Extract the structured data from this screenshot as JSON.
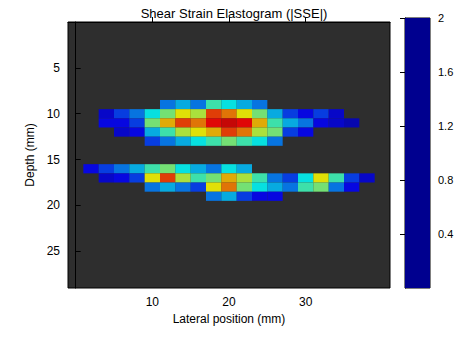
{
  "chart_data": {
    "type": "heatmap",
    "title": "Shear Strain Elastogram (|SSE|)",
    "x_label": "Lateral position (mm)",
    "y_label": "Depth (mm)",
    "xlim": [
      -1,
      41
    ],
    "xticks": [
      10,
      20,
      30
    ],
    "ylim": [
      0,
      29
    ],
    "yticks": [
      5,
      10,
      15,
      20,
      25
    ],
    "cells": [
      [
        4,
        10,
        0.3
      ],
      [
        4,
        11,
        0.4
      ],
      [
        6,
        10,
        0.5
      ],
      [
        6,
        11,
        0.4
      ],
      [
        6,
        12,
        0.3
      ],
      [
        8,
        10,
        0.6
      ],
      [
        8,
        11,
        0.5
      ],
      [
        8,
        12,
        0.4
      ],
      [
        10,
        10,
        0.8
      ],
      [
        10,
        11,
        1.0
      ],
      [
        10,
        12,
        0.7
      ],
      [
        10,
        13,
        0.5
      ],
      [
        12,
        9,
        0.6
      ],
      [
        12,
        10,
        1.0
      ],
      [
        12,
        11,
        1.3
      ],
      [
        12,
        12,
        0.9
      ],
      [
        12,
        13,
        0.6
      ],
      [
        14,
        9,
        0.7
      ],
      [
        14,
        10,
        1.2
      ],
      [
        14,
        11,
        1.5
      ],
      [
        14,
        12,
        1.1
      ],
      [
        14,
        13,
        0.7
      ],
      [
        16,
        9,
        0.6
      ],
      [
        16,
        10,
        1.1
      ],
      [
        16,
        11,
        1.4
      ],
      [
        16,
        12,
        1.2
      ],
      [
        16,
        13,
        0.8
      ],
      [
        18,
        9,
        0.9
      ],
      [
        18,
        10,
        1.5
      ],
      [
        18,
        11,
        1.6
      ],
      [
        18,
        12,
        1.3
      ],
      [
        18,
        13,
        0.9
      ],
      [
        20,
        9,
        0.8
      ],
      [
        20,
        10,
        1.4
      ],
      [
        20,
        11,
        1.7
      ],
      [
        20,
        12,
        1.5
      ],
      [
        20,
        13,
        1.0
      ],
      [
        22,
        9,
        0.7
      ],
      [
        22,
        10,
        1.2
      ],
      [
        22,
        11,
        1.6
      ],
      [
        22,
        12,
        1.4
      ],
      [
        22,
        13,
        0.9
      ],
      [
        24,
        9,
        0.6
      ],
      [
        24,
        10,
        1.0
      ],
      [
        24,
        11,
        1.3
      ],
      [
        24,
        12,
        1.1
      ],
      [
        24,
        13,
        0.8
      ],
      [
        26,
        10,
        0.7
      ],
      [
        26,
        11,
        0.9
      ],
      [
        26,
        12,
        1.0
      ],
      [
        26,
        13,
        0.6
      ],
      [
        28,
        10,
        0.5
      ],
      [
        28,
        11,
        0.7
      ],
      [
        28,
        12,
        0.5
      ],
      [
        30,
        10,
        0.4
      ],
      [
        30,
        11,
        0.6
      ],
      [
        30,
        12,
        0.4
      ],
      [
        32,
        10,
        0.5
      ],
      [
        32,
        11,
        0.4
      ],
      [
        34,
        10,
        0.3
      ],
      [
        34,
        11,
        0.3
      ],
      [
        36,
        11,
        0.2
      ],
      [
        2,
        16,
        0.4
      ],
      [
        4,
        16,
        0.5
      ],
      [
        4,
        17,
        0.3
      ],
      [
        6,
        16,
        0.6
      ],
      [
        6,
        17,
        0.4
      ],
      [
        8,
        16,
        0.7
      ],
      [
        8,
        17,
        0.5
      ],
      [
        10,
        16,
        0.9
      ],
      [
        10,
        17,
        1.2
      ],
      [
        10,
        18,
        0.6
      ],
      [
        12,
        16,
        1.0
      ],
      [
        12,
        17,
        1.5
      ],
      [
        12,
        18,
        0.7
      ],
      [
        14,
        16,
        0.8
      ],
      [
        14,
        17,
        1.1
      ],
      [
        14,
        18,
        0.6
      ],
      [
        16,
        16,
        0.7
      ],
      [
        16,
        17,
        0.9
      ],
      [
        16,
        18,
        0.5
      ],
      [
        18,
        16,
        0.6
      ],
      [
        18,
        17,
        1.0
      ],
      [
        18,
        18,
        1.2
      ],
      [
        18,
        19,
        0.6
      ],
      [
        20,
        16,
        0.8
      ],
      [
        20,
        17,
        1.3
      ],
      [
        20,
        18,
        1.4
      ],
      [
        20,
        19,
        0.7
      ],
      [
        22,
        16,
        0.7
      ],
      [
        22,
        17,
        1.1
      ],
      [
        22,
        18,
        1.0
      ],
      [
        22,
        19,
        0.5
      ],
      [
        24,
        17,
        0.9
      ],
      [
        24,
        18,
        0.8
      ],
      [
        24,
        19,
        0.4
      ],
      [
        26,
        17,
        0.6
      ],
      [
        26,
        18,
        0.7
      ],
      [
        26,
        19,
        0.4
      ],
      [
        28,
        17,
        0.5
      ],
      [
        28,
        18,
        0.6
      ],
      [
        30,
        17,
        0.8
      ],
      [
        30,
        18,
        0.9
      ],
      [
        32,
        17,
        1.2
      ],
      [
        32,
        18,
        1.0
      ],
      [
        34,
        17,
        0.9
      ],
      [
        34,
        18,
        0.6
      ],
      [
        36,
        17,
        0.5
      ],
      [
        36,
        18,
        0.4
      ],
      [
        38,
        17,
        0.3
      ]
    ],
    "colorbar": {
      "range": [
        0,
        2
      ],
      "ticks": [
        0.4,
        0.8,
        1.2,
        1.6,
        2
      ]
    }
  }
}
